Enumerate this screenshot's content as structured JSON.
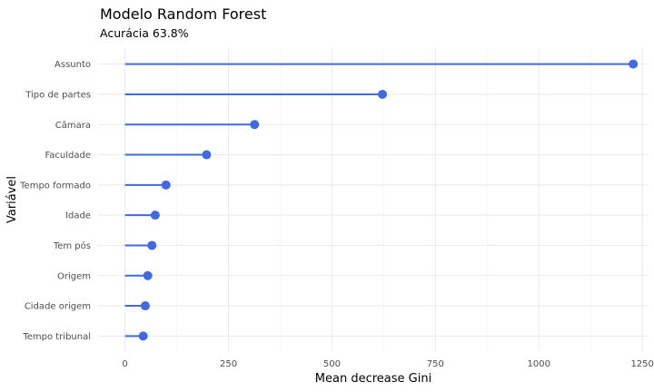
{
  "chart_data": {
    "type": "lollipop",
    "title": "Modelo Random Forest",
    "subtitle": "Acurácia 63.8%",
    "xlabel": "Mean decrease Gini",
    "ylabel": "Variável",
    "categories": [
      "Assunto",
      "Tipo de partes",
      "Câmara",
      "Faculdade",
      "Tempo formado",
      "Idade",
      "Tem pós",
      "Origem",
      "Cidade origem",
      "Tempo tribunal"
    ],
    "values": [
      1228,
      622,
      313,
      197,
      99,
      73,
      65,
      55,
      49,
      44
    ],
    "xlim": [
      -65,
      1265
    ],
    "xticks": [
      0,
      250,
      500,
      750,
      1000,
      1250
    ],
    "grid": true,
    "color": "#4169E1"
  }
}
